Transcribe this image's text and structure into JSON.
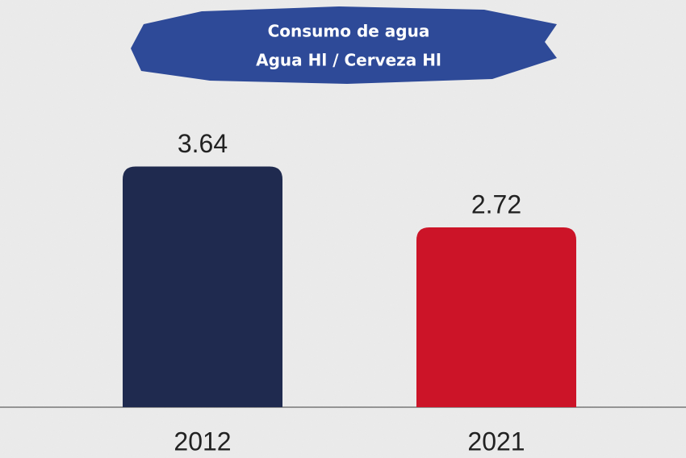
{
  "chart_data": {
    "type": "bar",
    "title": "Consumo de agua",
    "subtitle": "Agua Hl / Cerveza Hl",
    "categories": [
      "2012",
      "2021"
    ],
    "values": [
      3.64,
      2.72
    ],
    "colors": [
      "#1f2a4f",
      "#cc1428"
    ]
  }
}
